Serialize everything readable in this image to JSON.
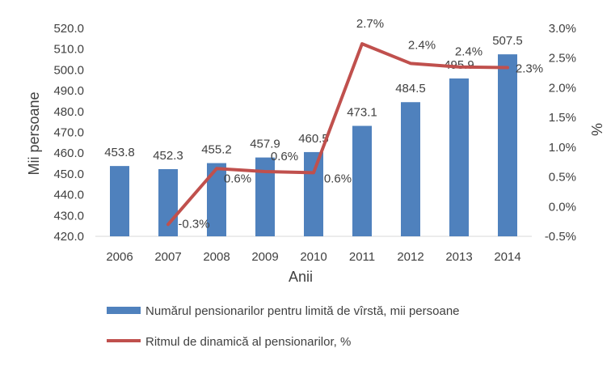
{
  "chart_data": {
    "type": "bar",
    "categories": [
      "2006",
      "2007",
      "2008",
      "2009",
      "2010",
      "2011",
      "2012",
      "2013",
      "2014"
    ],
    "series": [
      {
        "name": "Numărul pensionarilor pentru limită de vîrstă, mii persoane",
        "type": "bar",
        "axis": "left",
        "color": "#4F81BD",
        "values": [
          453.8,
          452.3,
          455.2,
          457.9,
          460.5,
          473.1,
          484.5,
          495.9,
          507.5
        ],
        "labels": [
          "453.8",
          "452.3",
          "455.2",
          "457.9",
          "460.5",
          "473.1",
          "484.5",
          "495.9",
          "507.5"
        ]
      },
      {
        "name": "Ritmul de dinamică al pensionarilor, %",
        "type": "line",
        "axis": "right",
        "color": "#C0504D",
        "values": [
          null,
          -0.3,
          0.64,
          0.59,
          0.57,
          2.74,
          2.41,
          2.35,
          2.34
        ],
        "labels": [
          "",
          "-0.3%",
          "0.6%",
          "0.6%",
          "0.6%",
          "2.7%",
          "2.4%",
          "2.4%",
          "2.3%"
        ]
      }
    ],
    "xlabel": "Anii",
    "ylabel": "Mii persoane",
    "y2label": "%",
    "ylim": [
      420,
      520
    ],
    "yticks": [
      "420.0",
      "430.0",
      "440.0",
      "450.0",
      "460.0",
      "470.0",
      "480.0",
      "490.0",
      "500.0",
      "510.0",
      "520.0"
    ],
    "y2lim": [
      -0.5,
      3.0
    ],
    "y2ticks": [
      "-0.5%",
      "0.0%",
      "0.5%",
      "1.0%",
      "1.5%",
      "2.0%",
      "2.5%",
      "3.0%"
    ],
    "grid": false,
    "legend_position": "bottom"
  }
}
